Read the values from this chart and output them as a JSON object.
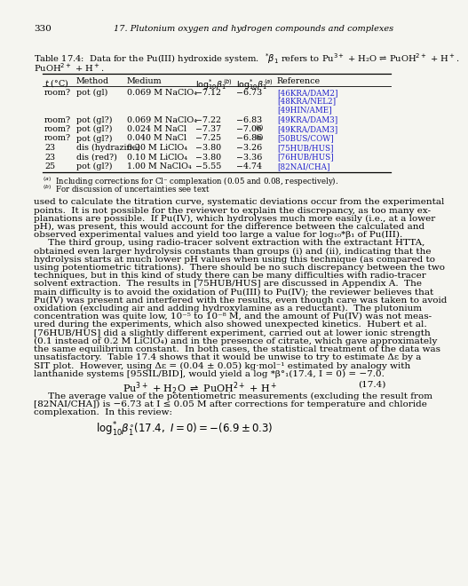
{
  "page_number": "330",
  "chapter_header": "17. Plutonium oxygen and hydrogen compounds and complexes",
  "table_caption_1": "Table 17.4:",
  "table_caption_2": "Data for the Pu(III) hydroxide system.",
  "table_caption_3": "*β₁ refers to Pu",
  "table_rows": [
    [
      "room?",
      "pot (gl)",
      "0.069 M NaClO₄",
      "−7.12",
      "−6.73",
      "[46KRA/DAM2]",
      "[48KRA/NEL2]",
      "[49HIN/AME]"
    ],
    [
      "room?",
      "pot (gl?)",
      "0.069 M NaClO₄",
      "−7.22",
      "−6.83",
      "[49KRA/DAM3]",
      "",
      ""
    ],
    [
      "room?",
      "pot (gl?)",
      "0.024 M NaCl",
      "−7.37",
      "−7.06",
      "[49KRA/DAM3]",
      "",
      ""
    ],
    [
      "room?",
      "pot (gl?)",
      "0.040 M NaCl",
      "−7.25",
      "−6.86",
      "[50BUS/COW]",
      "",
      ""
    ],
    [
      "23",
      "dis (hydrazine)",
      "0.20 M LiClO₄",
      "−3.80",
      "−3.26",
      "[75HUB/HUS]",
      "",
      ""
    ],
    [
      "23",
      "dis (red?)",
      "0.10 M LiClO₄",
      "−3.80",
      "−3.36",
      "[76HUB/HUS]",
      "",
      ""
    ],
    [
      "25",
      "pot (gl?)",
      "1.00 M NaClO₄",
      "−5.55",
      "−4.74",
      "[82NAI/CHA]",
      "",
      ""
    ]
  ],
  "ref_color": "#2222cc",
  "body_lines": [
    "used to calculate the titration curve, systematic deviations occur from the experimental",
    "points.  It is not possible for the reviewer to explain the discrepancy, as too many ex-",
    "planations are possible.  If Pu(IV), which hydrolyses much more easily (i.e., at a lower",
    "pH), was present, this would account for the difference between the calculated and",
    "observed experimental values and yield too large a value for log₁₀*β₁ of Pu(III).",
    "     The third group, using radio-tracer solvent extraction with the extractant HTTA,",
    "obtained even larger hydrolysis constants than groups (i) and (ii), indicating that the",
    "hydrolysis starts at much lower pH values when using this technique (as compared to",
    "using potentiometric titrations).  There should be no such discrepancy between the two",
    "techniques, but in this kind of study there can be many difficulties with radio-tracer",
    "solvent extraction.  The results in [75HUB/HUS] are discussed in Appendix A.  The",
    "main difficulty is to avoid the oxidation of Pu(III) to Pu(IV); the reviewer believes that",
    "Pu(IV) was present and interfered with the results, even though care was taken to avoid",
    "oxidation (excluding air and adding hydroxylamine as a reductant).  The plutonium",
    "concentration was quite low, 10⁻⁵ to 10⁻⁸ M, and the amount of Pu(IV) was not meas-",
    "ured during the experiments, which also showed unexpected kinetics.  Hubert et al.",
    "[76HUB/HUS] did a slightly different experiment, carried out at lower ionic strength",
    "(0.1 instead of 0.2 M LiClO₄) and in the presence of citrate, which gave approximately",
    "the same equilibrium constant.  In both cases, the statistical treatment of the data was",
    "unsatisfactory.  Table 17.4 shows that it would be unwise to try to estimate Δε by a",
    "SIT plot.  However, using Δε = (0.04 ± 0.05) kg·mol⁻¹ estimated by analogy with",
    "lanthanide systems [95SIL/BID], would yield a log *β°₁(17.4, I = 0) = −7.0."
  ],
  "final_lines": [
    "     The average value of the potentiometric measurements (excluding the result from",
    "[82NAI/CHA]) is −6.73 at I ≤ 0.05 M after corrections for temperature and chloride",
    "complexation.  In this review:"
  ],
  "bg_color": "#f5f5f0"
}
